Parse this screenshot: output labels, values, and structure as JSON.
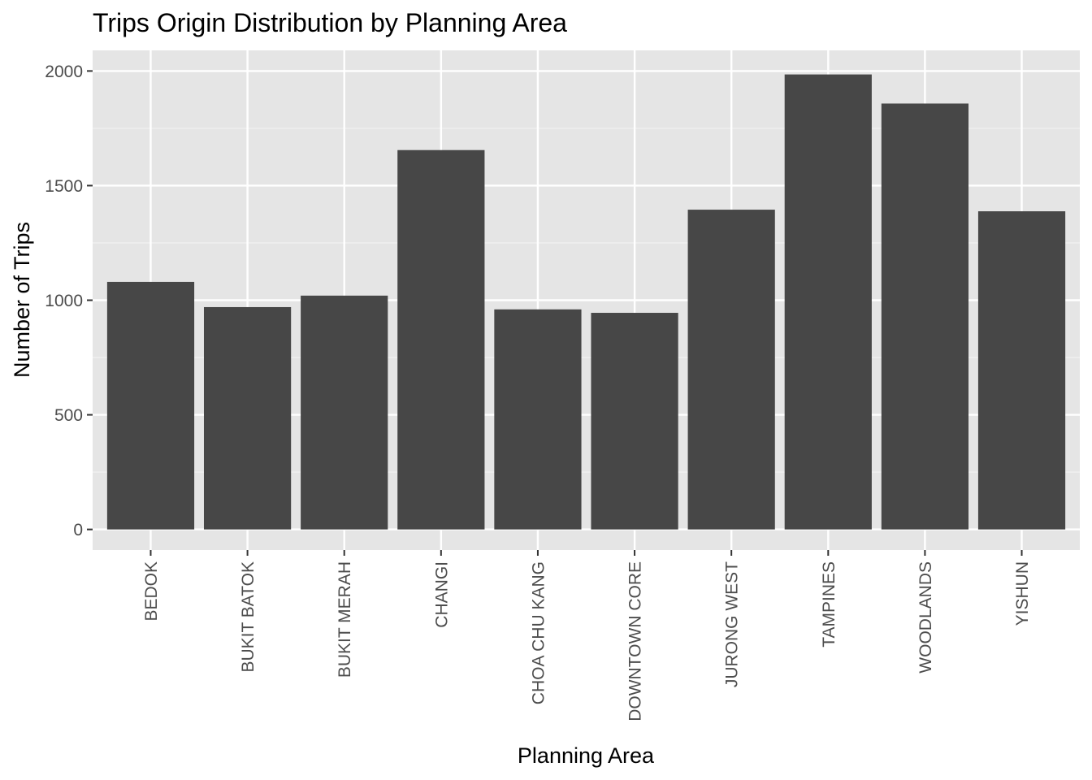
{
  "chart_data": {
    "type": "bar",
    "title": "Trips Origin Distribution by Planning Area",
    "xlabel": "Planning Area",
    "ylabel": "Number of Trips",
    "categories": [
      "BEDOK",
      "BUKIT BATOK",
      "BUKIT MERAH",
      "CHANGI",
      "CHOA CHU KANG",
      "DOWNTOWN CORE",
      "JURONG WEST",
      "TAMPINES",
      "WOODLANDS",
      "YISHUN"
    ],
    "values": [
      1080,
      970,
      1020,
      1655,
      960,
      945,
      1395,
      1985,
      1858,
      1388
    ],
    "ylim": [
      -90,
      2090
    ],
    "y_ticks": [
      0,
      500,
      1000,
      1500,
      2000
    ],
    "y_tick_labels": [
      "0",
      "500",
      "1000",
      "1500",
      "2000"
    ],
    "grid": true,
    "legend": "none",
    "colors": {
      "bar": "#474747",
      "panel": "#e5e5e5",
      "grid_major": "#ffffff",
      "grid_minor": "#f2f2f2",
      "tick_text": "#4d4d4d",
      "tick_mark": "#333333"
    }
  }
}
